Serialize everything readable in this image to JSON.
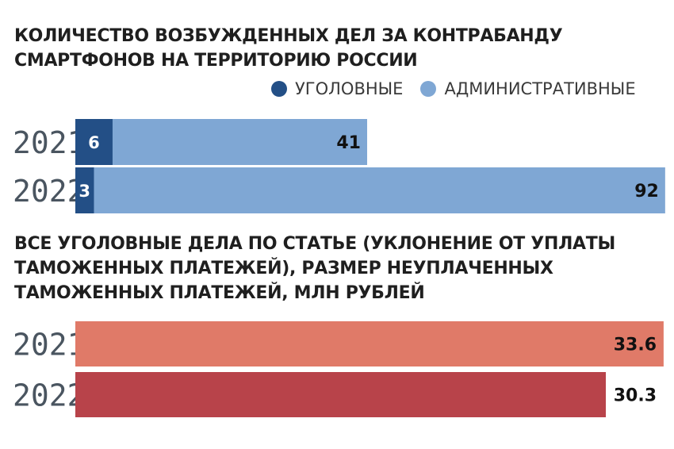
{
  "chart1": {
    "title": "КОЛИЧЕСТВО ВОЗБУЖДЕННЫХ ДЕЛ ЗА КОНТРАБАНДУ\nСМАРТФОНОВ НА ТЕРРИТОРИЮ РОССИИ",
    "legend": [
      {
        "label": "УГОЛОВНЫЕ",
        "color": "#234f86"
      },
      {
        "label": "АДМИНИСТРАТИВНЫЕ",
        "color": "#7fa7d4"
      }
    ]
  },
  "chart2": {
    "title": "ВСЕ УГОЛОВНЫЕ ДЕЛА ПО СТАТЬЕ (УКЛОНЕНИЕ ОТ УПЛАТЫ\nТАМОЖЕННЫХ ПЛАТЕЖЕЙ), РАЗМЕР НЕУПЛАЧЕННЫХ\nТАМОЖЕННЫХ ПЛАТЕЖЕЙ, МЛН РУБЛЕЙ"
  },
  "chart_data": [
    {
      "type": "bar",
      "orientation": "horizontal",
      "stacked": true,
      "title": "КОЛИЧЕСТВО ВОЗБУЖДЕННЫХ ДЕЛ ЗА КОНТРАБАНДУ СМАРТФОНОВ НА ТЕРРИТОРИЮ РОССИИ",
      "categories": [
        "2021",
        "2022"
      ],
      "series": [
        {
          "name": "УГОЛОВНЫЕ",
          "values": [
            6,
            3
          ],
          "color": "#234f86"
        },
        {
          "name": "АДМИНИСТРАТИВНЫЕ",
          "values": [
            41,
            92
          ],
          "color": "#7fa7d4"
        }
      ],
      "legend_position": "top-right",
      "grid": false
    },
    {
      "type": "bar",
      "orientation": "horizontal",
      "title": "ВСЕ УГОЛОВНЫЕ ДЕЛА ПО СТАТЬЕ (УКЛОНЕНИЕ ОТ УПЛАТЫ ТАМОЖЕННЫХ ПЛАТЕЖЕЙ), РАЗМЕР НЕУПЛАЧЕННЫХ ТАМОЖЕННЫХ ПЛАТЕЖЕЙ, МЛН РУБЛЕЙ",
      "categories": [
        "2021",
        "2022"
      ],
      "values": [
        33.6,
        30.3
      ],
      "value_labels": [
        "33.6",
        "30.3"
      ],
      "colors": [
        "#e07a68",
        "#b8434a"
      ],
      "grid": false
    }
  ]
}
